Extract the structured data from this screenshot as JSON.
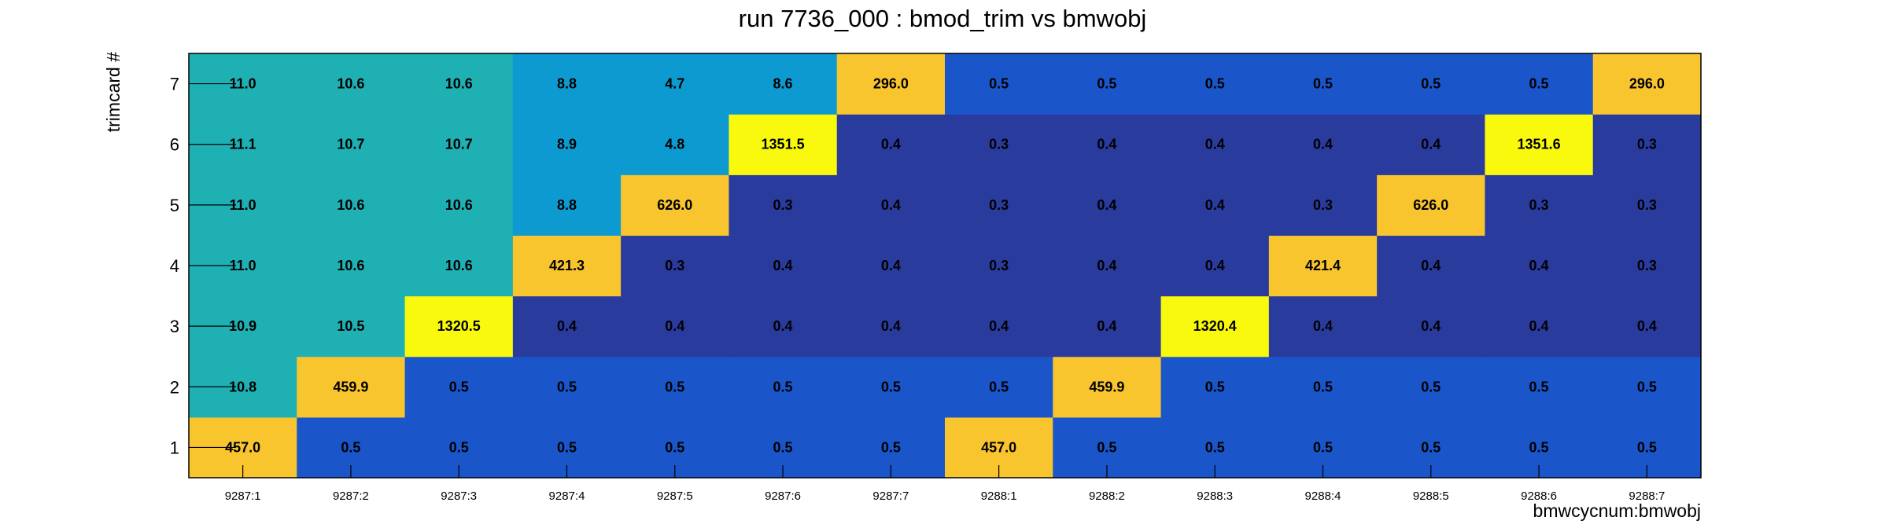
{
  "chart_data": {
    "type": "heatmap",
    "title": "run 7736_000 : bmod_trim vs bmwobj",
    "xlabel": "bmwcycnum:bmwobj",
    "ylabel": "trimcard #",
    "x_categories": [
      "9287:1",
      "9287:2",
      "9287:3",
      "9287:4",
      "9287:5",
      "9287:6",
      "9287:7",
      "9288:1",
      "9288:2",
      "9288:3",
      "9288:4",
      "9288:5",
      "9288:6",
      "9288:7"
    ],
    "y_categories": [
      "1",
      "2",
      "3",
      "4",
      "5",
      "6",
      "7"
    ],
    "values": [
      [
        457.0,
        0.5,
        0.5,
        0.5,
        0.5,
        0.5,
        0.5,
        457.0,
        0.5,
        0.5,
        0.5,
        0.5,
        0.5,
        0.5
      ],
      [
        10.8,
        459.9,
        0.5,
        0.5,
        0.5,
        0.5,
        0.5,
        0.5,
        459.9,
        0.5,
        0.5,
        0.5,
        0.5,
        0.5
      ],
      [
        10.9,
        10.5,
        1320.5,
        0.4,
        0.4,
        0.4,
        0.4,
        0.4,
        0.4,
        1320.4,
        0.4,
        0.4,
        0.4,
        0.4
      ],
      [
        11.0,
        10.6,
        10.6,
        421.3,
        0.3,
        0.4,
        0.4,
        0.3,
        0.4,
        0.4,
        421.4,
        0.4,
        0.4,
        0.3
      ],
      [
        11.0,
        10.6,
        10.6,
        8.8,
        626.0,
        0.3,
        0.4,
        0.3,
        0.4,
        0.4,
        0.3,
        626.0,
        0.3,
        0.3
      ],
      [
        11.1,
        10.7,
        10.7,
        8.9,
        4.8,
        1351.5,
        0.4,
        0.3,
        0.4,
        0.4,
        0.4,
        0.4,
        1351.6,
        0.3
      ],
      [
        11.0,
        10.6,
        10.6,
        8.8,
        4.7,
        8.6,
        296.0,
        0.5,
        0.5,
        0.5,
        0.5,
        0.5,
        0.5,
        296.0
      ]
    ],
    "log_color_scale": true,
    "colors": {
      "low": "#2a3b9e",
      "low_mid": "#1a55c9",
      "mid": "#0d9ad1",
      "mid_high": "#1fb0b4",
      "high": "#f9c52f",
      "max": "#f9f90e"
    },
    "grid": false,
    "legend": "none"
  }
}
